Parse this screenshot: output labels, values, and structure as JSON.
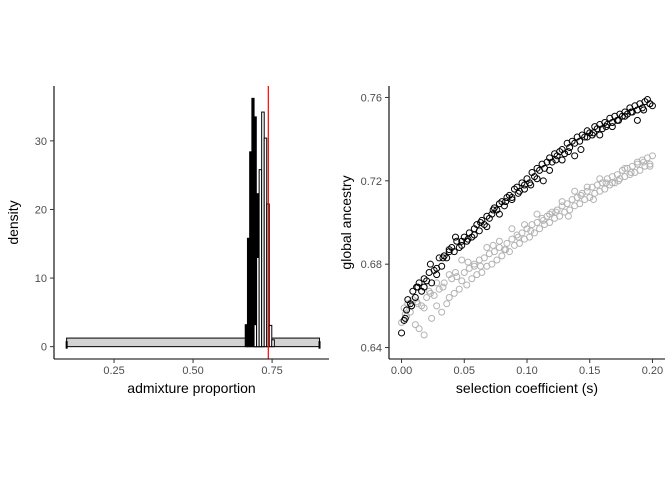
{
  "chart_data": [
    {
      "type": "histogram",
      "xlabel": "admixture proportion",
      "ylabel": "density",
      "xlim": [
        0.06,
        0.93
      ],
      "ylim": [
        -1.8,
        38
      ],
      "x_ticks": [
        0.25,
        0.5,
        0.75
      ],
      "x_tick_labels": [
        "0.25",
        "0.50",
        "0.75"
      ],
      "y_ticks": [
        0,
        10,
        20,
        30
      ],
      "y_tick_labels": [
        "0",
        "10",
        "20",
        "30"
      ],
      "grid": false,
      "legend": "none",
      "series": [
        {
          "fill": "#d3d3d3",
          "stroke": "#000000",
          "bins": [
            {
              "x0": 0.1,
              "x1": 0.9,
              "density": 1.25
            }
          ]
        },
        {
          "fill": "#000000",
          "stroke": "#000000",
          "bins": [
            {
              "x0": 0.665,
              "x1": 0.672,
              "density": 3.2
            },
            {
              "x0": 0.672,
              "x1": 0.679,
              "density": 15.8
            },
            {
              "x0": 0.679,
              "x1": 0.686,
              "density": 28.4
            },
            {
              "x0": 0.686,
              "x1": 0.693,
              "density": 36.2
            },
            {
              "x0": 0.693,
              "x1": 0.7,
              "density": 33.5
            },
            {
              "x0": 0.7,
              "x1": 0.707,
              "density": 22.3
            },
            {
              "x0": 0.707,
              "x1": 0.714,
              "density": 7.8
            },
            {
              "x0": 0.714,
              "x1": 0.721,
              "density": 1.5
            }
          ]
        },
        {
          "fill": "#ffffff",
          "stroke": "#000000",
          "bins": [
            {
              "x0": 0.693,
              "x1": 0.701,
              "density": 3.2
            },
            {
              "x0": 0.701,
              "x1": 0.709,
              "density": 13.0
            },
            {
              "x0": 0.709,
              "x1": 0.717,
              "density": 25.8
            },
            {
              "x0": 0.717,
              "x1": 0.725,
              "density": 34.2
            },
            {
              "x0": 0.725,
              "x1": 0.733,
              "density": 30.4
            },
            {
              "x0": 0.733,
              "x1": 0.741,
              "density": 20.8
            },
            {
              "x0": 0.741,
              "x1": 0.749,
              "density": 3.1
            },
            {
              "x0": 0.749,
              "x1": 0.757,
              "density": 1.0
            }
          ]
        }
      ],
      "vline": {
        "x": 0.738,
        "color": "#ff0000"
      },
      "end_markers": [
        0.1,
        0.9
      ]
    },
    {
      "type": "scatter",
      "xlabel": "selection coefficient (s)",
      "ylabel": "global ancestry",
      "xlim": [
        -0.01,
        0.21
      ],
      "ylim": [
        0.6345,
        0.7655
      ],
      "x_ticks": [
        0,
        0.05,
        0.1,
        0.15,
        0.2
      ],
      "x_tick_labels": [
        "0.00",
        "0.05",
        "0.10",
        "0.15",
        "0.20"
      ],
      "y_ticks": [
        0.64,
        0.68,
        0.72,
        0.76
      ],
      "y_tick_labels": [
        "0.64",
        "0.68",
        "0.72",
        "0.76"
      ],
      "grid": false,
      "legend": "none",
      "marker": "open-circle",
      "series": [
        {
          "color": "#000000",
          "x": [
            0,
            0.002,
            0.004,
            0.005,
            0.007,
            0.009,
            0.011,
            0.012,
            0.014,
            0.016,
            0.018,
            0.02,
            0.022,
            0.024,
            0.026,
            0.028,
            0.03,
            0.032,
            0.034,
            0.036,
            0.038,
            0.04,
            0.042,
            0.044,
            0.046,
            0.048,
            0.05,
            0.052,
            0.054,
            0.056,
            0.058,
            0.06,
            0.062,
            0.064,
            0.066,
            0.068,
            0.07,
            0.072,
            0.074,
            0.076,
            0.078,
            0.08,
            0.082,
            0.084,
            0.086,
            0.088,
            0.09,
            0.092,
            0.094,
            0.096,
            0.098,
            0.1,
            0.102,
            0.104,
            0.106,
            0.108,
            0.11,
            0.112,
            0.114,
            0.116,
            0.118,
            0.12,
            0.122,
            0.124,
            0.126,
            0.128,
            0.13,
            0.132,
            0.134,
            0.136,
            0.138,
            0.14,
            0.142,
            0.144,
            0.146,
            0.148,
            0.15,
            0.152,
            0.154,
            0.156,
            0.158,
            0.16,
            0.162,
            0.164,
            0.166,
            0.168,
            0.17,
            0.172,
            0.174,
            0.176,
            0.178,
            0.18,
            0.182,
            0.184,
            0.186,
            0.188,
            0.19,
            0.192,
            0.194,
            0.196,
            0.198,
            0.2,
            0.003,
            0.013,
            0.023,
            0.033,
            0.043,
            0.053,
            0.063,
            0.073,
            0.083,
            0.093,
            0.103,
            0.113,
            0.123,
            0.133,
            0.143,
            0.153,
            0.163,
            0.173,
            0.183,
            0.193,
            0.008,
            0.018,
            0.028,
            0.038,
            0.048,
            0.058,
            0.068,
            0.078,
            0.088,
            0.098,
            0.108,
            0.118,
            0.128,
            0.138,
            0.148,
            0.158,
            0.168,
            0.178,
            0.188,
            0.198
          ],
          "y": [
            0.647,
            0.653,
            0.658,
            0.663,
            0.661,
            0.667,
            0.664,
            0.669,
            0.671,
            0.667,
            0.673,
            0.672,
            0.676,
            0.671,
            0.677,
            0.678,
            0.683,
            0.679,
            0.684,
            0.683,
            0.686,
            0.688,
            0.686,
            0.691,
            0.688,
            0.689,
            0.693,
            0.691,
            0.695,
            0.693,
            0.697,
            0.699,
            0.696,
            0.701,
            0.699,
            0.703,
            0.702,
            0.704,
            0.707,
            0.706,
            0.709,
            0.71,
            0.708,
            0.712,
            0.713,
            0.711,
            0.716,
            0.717,
            0.715,
            0.719,
            0.718,
            0.721,
            0.719,
            0.724,
            0.722,
            0.726,
            0.725,
            0.728,
            0.726,
            0.729,
            0.731,
            0.729,
            0.733,
            0.732,
            0.734,
            0.735,
            0.733,
            0.738,
            0.736,
            0.739,
            0.738,
            0.741,
            0.739,
            0.742,
            0.741,
            0.744,
            0.743,
            0.742,
            0.746,
            0.745,
            0.747,
            0.745,
            0.748,
            0.747,
            0.75,
            0.748,
            0.751,
            0.749,
            0.752,
            0.751,
            0.753,
            0.752,
            0.755,
            0.753,
            0.756,
            0.754,
            0.757,
            0.755,
            0.758,
            0.759,
            0.757,
            0.756,
            0.654,
            0.669,
            0.68,
            0.683,
            0.693,
            0.692,
            0.7,
            0.706,
            0.71,
            0.714,
            0.718,
            0.72,
            0.73,
            0.734,
            0.735,
            0.743,
            0.746,
            0.749,
            0.753,
            0.754,
            0.66,
            0.669,
            0.675,
            0.687,
            0.691,
            0.694,
            0.698,
            0.704,
            0.712,
            0.716,
            0.721,
            0.725,
            0.73,
            0.732,
            0.741,
            0.742,
            0.746,
            0.751,
            0.749,
            0.757
          ]
        },
        {
          "color": "#b3b3b3",
          "x": [
            0,
            0.002,
            0.004,
            0.005,
            0.007,
            0.009,
            0.011,
            0.012,
            0.014,
            0.016,
            0.018,
            0.02,
            0.022,
            0.024,
            0.026,
            0.028,
            0.03,
            0.032,
            0.034,
            0.036,
            0.038,
            0.04,
            0.042,
            0.044,
            0.046,
            0.048,
            0.05,
            0.052,
            0.054,
            0.056,
            0.058,
            0.06,
            0.062,
            0.064,
            0.066,
            0.068,
            0.07,
            0.072,
            0.074,
            0.076,
            0.078,
            0.08,
            0.082,
            0.084,
            0.086,
            0.088,
            0.09,
            0.092,
            0.094,
            0.096,
            0.098,
            0.1,
            0.102,
            0.104,
            0.106,
            0.108,
            0.11,
            0.112,
            0.114,
            0.116,
            0.118,
            0.12,
            0.122,
            0.124,
            0.126,
            0.128,
            0.13,
            0.132,
            0.134,
            0.136,
            0.138,
            0.14,
            0.142,
            0.144,
            0.146,
            0.148,
            0.15,
            0.152,
            0.154,
            0.156,
            0.158,
            0.16,
            0.162,
            0.164,
            0.166,
            0.168,
            0.17,
            0.172,
            0.174,
            0.176,
            0.178,
            0.18,
            0.182,
            0.184,
            0.186,
            0.188,
            0.19,
            0.192,
            0.194,
            0.196,
            0.198,
            0.2,
            0.003,
            0.013,
            0.023,
            0.033,
            0.043,
            0.053,
            0.063,
            0.073,
            0.083,
            0.093,
            0.103,
            0.113,
            0.123,
            0.133,
            0.143,
            0.153,
            0.163,
            0.173,
            0.183,
            0.193,
            0.008,
            0.018,
            0.028,
            0.038,
            0.048,
            0.058,
            0.068,
            0.078,
            0.088,
            0.098,
            0.108,
            0.118,
            0.128,
            0.138,
            0.148,
            0.158,
            0.168,
            0.178,
            0.188,
            0.198
          ],
          "y": [
            0.652,
            0.659,
            0.655,
            0.661,
            0.657,
            0.663,
            0.651,
            0.662,
            0.649,
            0.66,
            0.646,
            0.664,
            0.667,
            0.654,
            0.665,
            0.66,
            0.668,
            0.657,
            0.671,
            0.661,
            0.664,
            0.673,
            0.666,
            0.674,
            0.668,
            0.672,
            0.676,
            0.67,
            0.678,
            0.673,
            0.679,
            0.675,
            0.682,
            0.676,
            0.683,
            0.679,
            0.685,
            0.68,
            0.686,
            0.682,
            0.688,
            0.684,
            0.687,
            0.69,
            0.686,
            0.692,
            0.689,
            0.694,
            0.69,
            0.695,
            0.692,
            0.697,
            0.693,
            0.699,
            0.695,
            0.7,
            0.697,
            0.702,
            0.699,
            0.703,
            0.7,
            0.705,
            0.702,
            0.706,
            0.703,
            0.708,
            0.705,
            0.709,
            0.706,
            0.711,
            0.708,
            0.712,
            0.709,
            0.714,
            0.711,
            0.715,
            0.712,
            0.717,
            0.714,
            0.718,
            0.715,
            0.719,
            0.716,
            0.721,
            0.718,
            0.722,
            0.719,
            0.723,
            0.721,
            0.725,
            0.722,
            0.726,
            0.723,
            0.727,
            0.724,
            0.728,
            0.725,
            0.73,
            0.727,
            0.731,
            0.728,
            0.732,
            0.656,
            0.661,
            0.666,
            0.669,
            0.676,
            0.681,
            0.679,
            0.689,
            0.687,
            0.693,
            0.696,
            0.701,
            0.705,
            0.703,
            0.713,
            0.711,
            0.719,
            0.72,
            0.724,
            0.729,
            0.66,
            0.659,
            0.671,
            0.675,
            0.682,
            0.68,
            0.688,
            0.691,
            0.697,
            0.699,
            0.704,
            0.704,
            0.71,
            0.715,
            0.717,
            0.721,
            0.719,
            0.726,
            0.729,
            0.727
          ]
        }
      ]
    }
  ]
}
